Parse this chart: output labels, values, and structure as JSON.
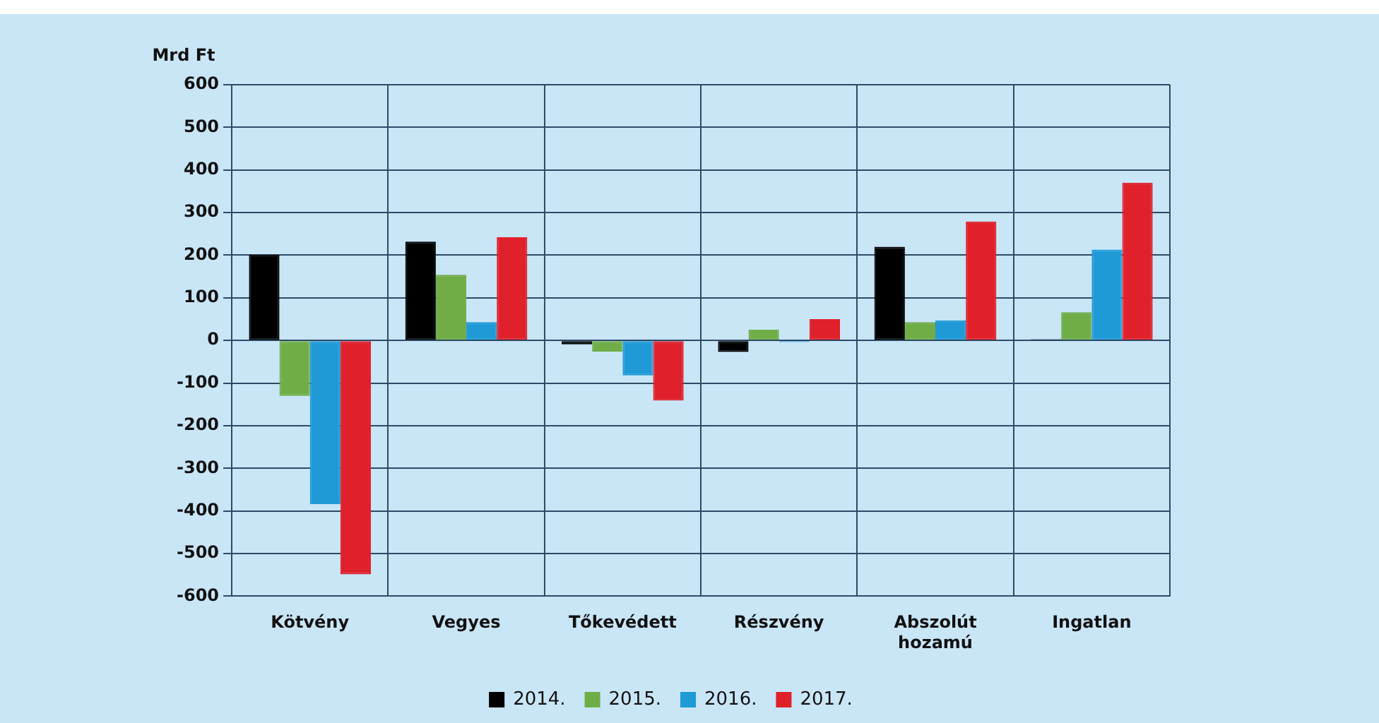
{
  "chart_data": {
    "type": "bar",
    "ylabel": "Mrd Ft",
    "categories": [
      "Kötvény",
      "Vegyes",
      "Tőkevédett",
      "Részvény",
      "Abszolút hozamú",
      "Ingatlan"
    ],
    "series": [
      {
        "name": "2014.",
        "color": "#000000",
        "values": [
          201,
          232,
          -9,
          -27,
          220,
          3
        ]
      },
      {
        "name": "2015.",
        "color": "#70ad47",
        "values": [
          -130,
          154,
          -26,
          25,
          43,
          66
        ]
      },
      {
        "name": "2016.",
        "color": "#1f9ad6",
        "values": [
          -384,
          43,
          -82,
          -4,
          47,
          213
        ]
      },
      {
        "name": "2017.",
        "color": "#e0202a",
        "values": [
          -549,
          242,
          -141,
          50,
          279,
          370
        ]
      }
    ],
    "ylim": [
      -600,
      600
    ],
    "yticks": [
      -600,
      -500,
      -400,
      -300,
      -200,
      -100,
      0,
      100,
      200,
      300,
      400,
      500,
      600
    ],
    "grid": true,
    "legend": "bottom"
  }
}
